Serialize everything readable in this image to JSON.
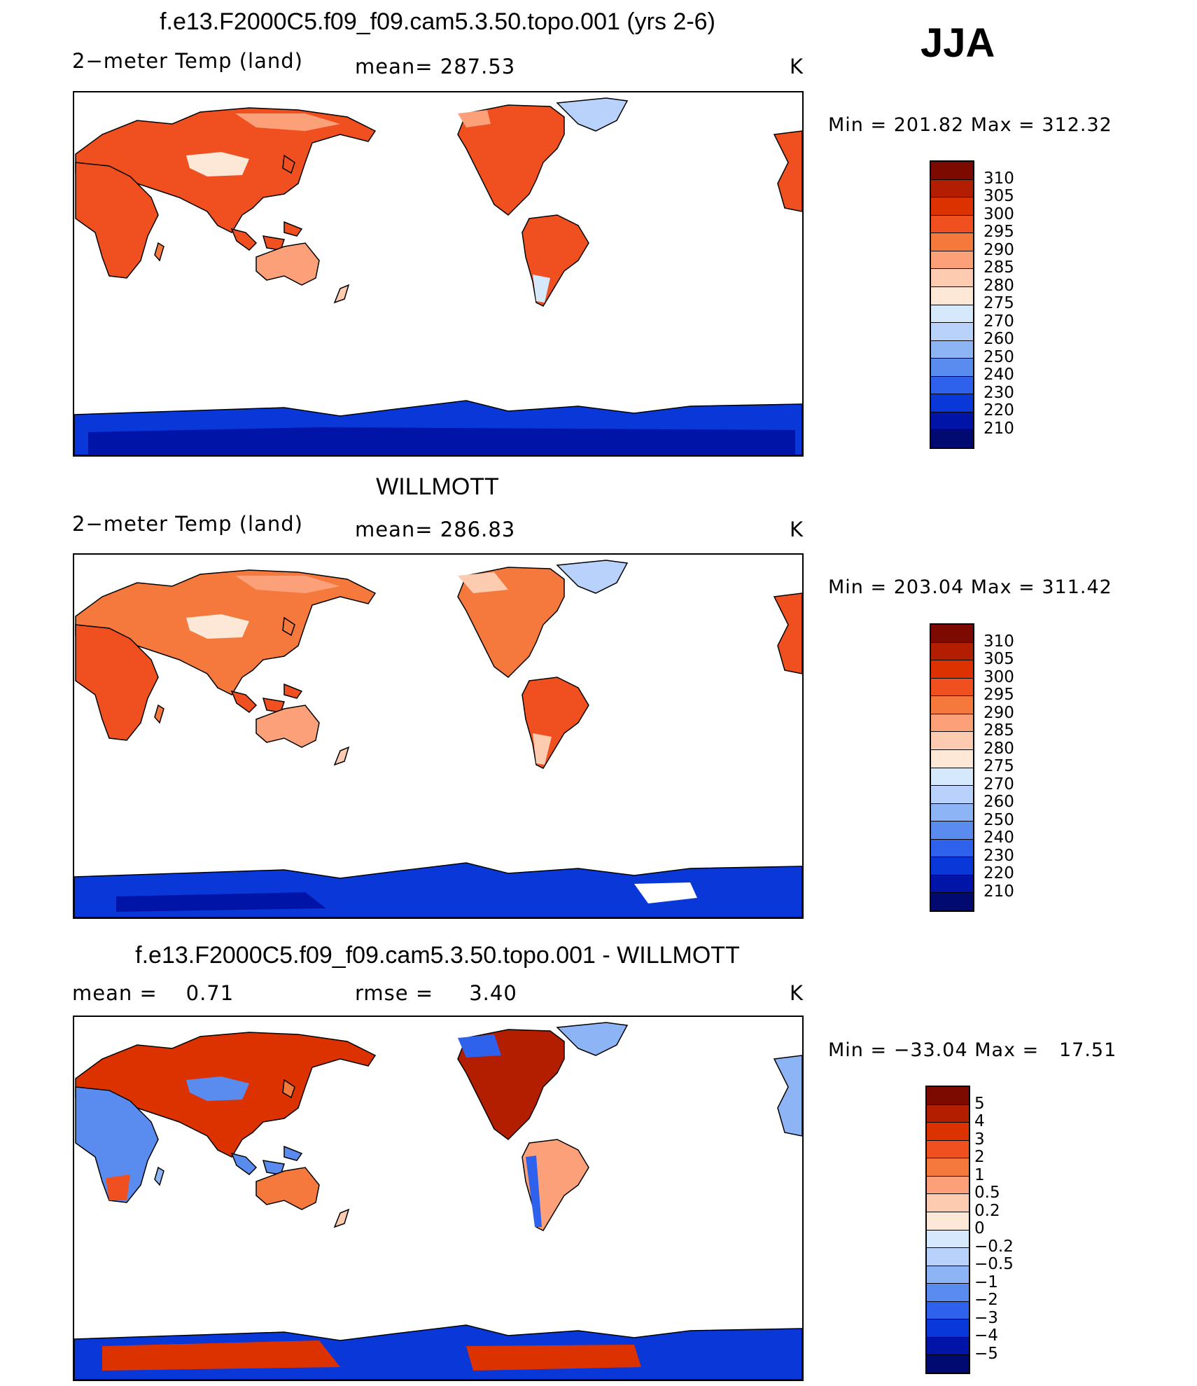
{
  "season": "JJA",
  "panels": [
    {
      "title": "f.e13.F2000C5.f09_f09.cam5.3.50.topo.001 (yrs 2-6)",
      "left_label": "2−meter Temp (land)",
      "center_label": "mean= 287.53",
      "units": "K",
      "minmax": "Min = 201.82 Max = 312.32",
      "colorbar": {
        "levels": [
          "310",
          "305",
          "300",
          "295",
          "290",
          "285",
          "280",
          "275",
          "270",
          "260",
          "250",
          "240",
          "230",
          "220",
          "210"
        ],
        "colors": [
          "#7d0a00",
          "#b41e00",
          "#dc3200",
          "#f05020",
          "#f5783c",
          "#fba078",
          "#fdcbb0",
          "#fde8d8",
          "#d6e8fb",
          "#b8d2fb",
          "#8db4f5",
          "#5a8cf0",
          "#2e62ec",
          "#0a38d8",
          "#0014a8",
          "#000a70"
        ]
      }
    },
    {
      "title": "WILLMOTT",
      "left_label": "2−meter Temp (land)",
      "center_label": "mean= 286.83",
      "units": "K",
      "minmax": "Min = 203.04 Max = 311.42",
      "colorbar": {
        "levels": [
          "310",
          "305",
          "300",
          "295",
          "290",
          "285",
          "280",
          "275",
          "270",
          "260",
          "250",
          "240",
          "230",
          "220",
          "210"
        ],
        "colors": [
          "#7d0a00",
          "#b41e00",
          "#dc3200",
          "#f05020",
          "#f5783c",
          "#fba078",
          "#fdcbb0",
          "#fde8d8",
          "#d6e8fb",
          "#b8d2fb",
          "#8db4f5",
          "#5a8cf0",
          "#2e62ec",
          "#0a38d8",
          "#0014a8",
          "#000a70"
        ]
      }
    },
    {
      "title": "f.e13.F2000C5.f09_f09.cam5.3.50.topo.001 - WILLMOTT",
      "left_label": "mean =    0.71",
      "center_label": "rmse =     3.40",
      "units": "K",
      "minmax": "Min = −33.04 Max =   17.51",
      "colorbar": {
        "levels": [
          "5",
          "4",
          "3",
          "2",
          "1",
          "0.5",
          "0.2",
          "0",
          "−0.2",
          "−0.5",
          "−1",
          "−2",
          "−3",
          "−4",
          "−5"
        ],
        "colors": [
          "#7d0a00",
          "#b41e00",
          "#dc3200",
          "#f05020",
          "#f5783c",
          "#fba078",
          "#fdcbb0",
          "#fde8d8",
          "#d6e8fb",
          "#b8d2fb",
          "#8db4f5",
          "#5a8cf0",
          "#2e62ec",
          "#0a38d8",
          "#0014a8",
          "#000a70"
        ]
      }
    }
  ]
}
